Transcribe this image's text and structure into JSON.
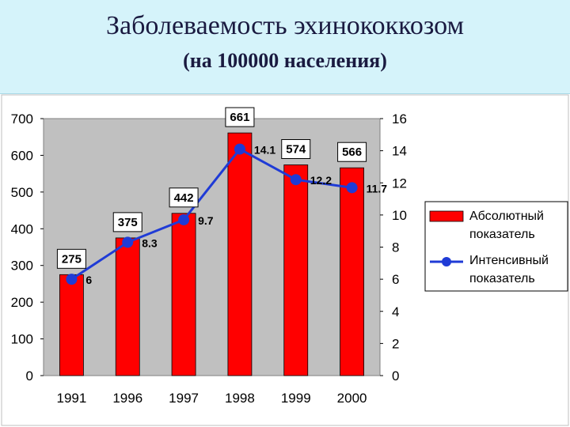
{
  "title": "Заболеваемость эхинококкозом",
  "subtitle": "(на 100000 населения)",
  "colors": {
    "bar": "#ff0000",
    "line": "#1f3bd6",
    "plot_background": "#c0c0c0",
    "title_band": "#d5f3fa"
  },
  "chart_data": {
    "type": "bar",
    "categories": [
      "1991",
      "1996",
      "1997",
      "1998",
      "1999",
      "2000"
    ],
    "series": [
      {
        "name": "Абсолютный показатель",
        "type": "bar",
        "axis": "left",
        "values": [
          275,
          375,
          442,
          661,
          574,
          566
        ],
        "labels": [
          "275",
          "375",
          "442",
          "661",
          "574",
          "566"
        ]
      },
      {
        "name": "Интенсивный показатель",
        "type": "line",
        "axis": "right",
        "values": [
          6,
          8.3,
          9.7,
          14.1,
          12.2,
          11.7
        ],
        "labels": [
          "6",
          "8.3",
          "9.7",
          "14.1",
          "12.2",
          "11.7"
        ]
      }
    ],
    "y_left": {
      "range": [
        0,
        700
      ],
      "ticks": [
        "0",
        "100",
        "200",
        "300",
        "400",
        "500",
        "600",
        "700"
      ]
    },
    "y_right": {
      "range": [
        0,
        16
      ],
      "ticks": [
        "0",
        "2",
        "4",
        "6",
        "8",
        "10",
        "12",
        "14",
        "16"
      ]
    },
    "legend": {
      "position": "right",
      "entries": [
        {
          "line1": "Абсолютный",
          "line2": "показатель"
        },
        {
          "line1": "Интенсивный",
          "line2": "показатель"
        }
      ]
    },
    "grid": false
  }
}
